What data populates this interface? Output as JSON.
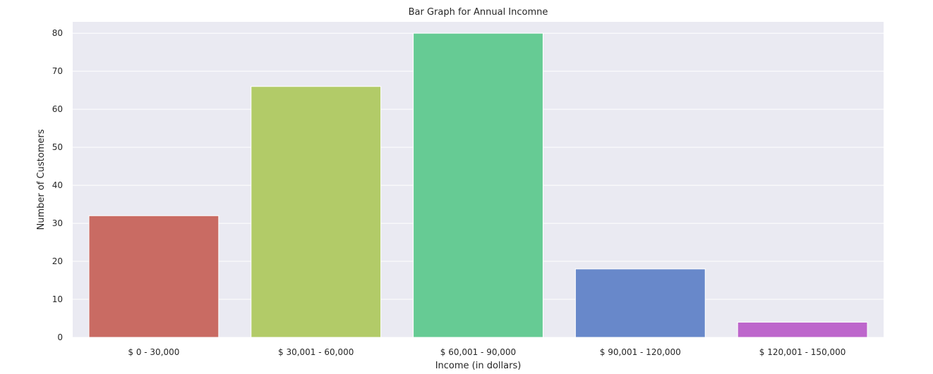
{
  "chart_data": {
    "type": "bar",
    "title": "Bar Graph for Annual Incomne",
    "xlabel": "Income (in dollars)",
    "ylabel": "Number of Customers",
    "categories": [
      "$ 0 - 30,000",
      "$ 30,001 - 60,000",
      "$ 60,001 - 90,000",
      "$ 90,001 - 120,000",
      "$ 120,001 - 150,000"
    ],
    "values": [
      32,
      66,
      80,
      18,
      4
    ],
    "bar_colors": [
      "#c96b63",
      "#b2cb68",
      "#66cb94",
      "#6888ca",
      "#bd66cc"
    ],
    "ylim": [
      0,
      83
    ],
    "yticks": [
      0,
      10,
      20,
      30,
      40,
      50,
      60,
      70,
      80
    ],
    "grid": true,
    "style": {
      "plot_background": "#eaeaf2",
      "grid_color": "#ffffff",
      "text_color": "#262626"
    }
  }
}
